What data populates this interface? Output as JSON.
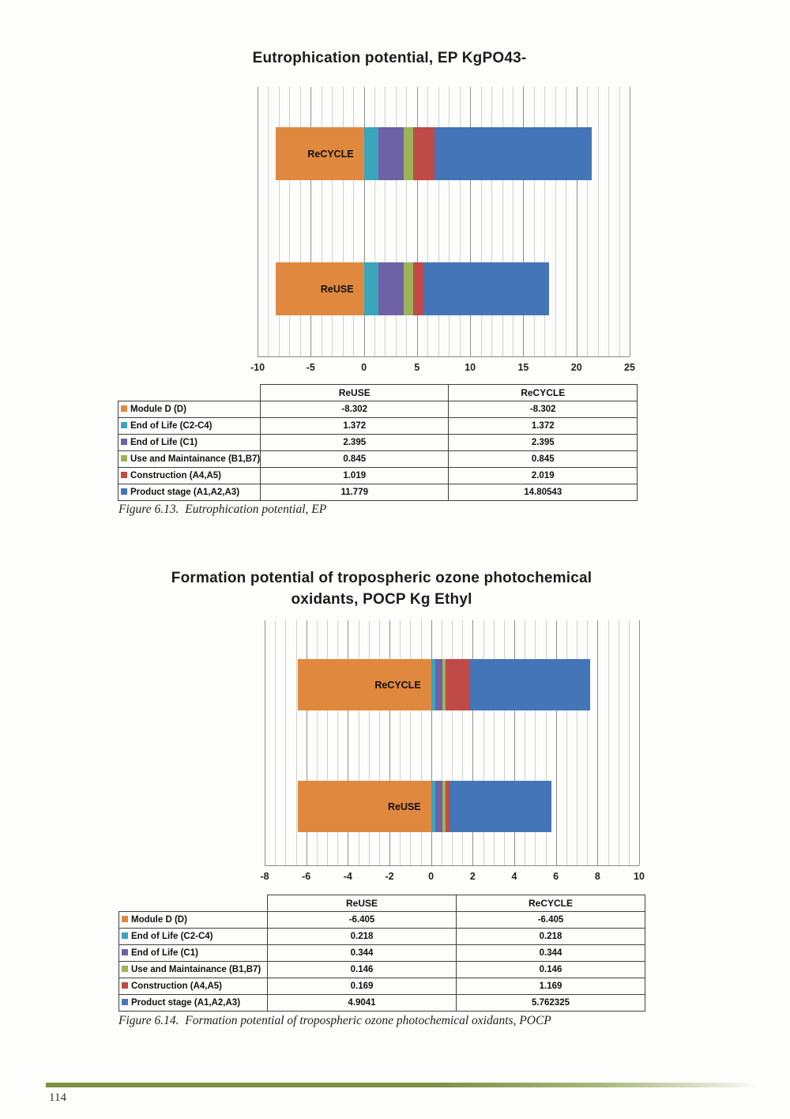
{
  "page_number": "114",
  "figures": [
    {
      "title_lines": [
        "Eutrophication potential, EP KgPO43-"
      ],
      "caption": "Figure 6.13.  Eutrophication potential, EP",
      "table": {
        "col_headers": [
          "ReUSE",
          "ReCYCLE"
        ],
        "rows": [
          {
            "label": "Module D (D)",
            "swatch": "#E0883E",
            "values": [
              "-8.302",
              "-8.302"
            ]
          },
          {
            "label": "End of Life (C2-C4)",
            "swatch": "#3AA5BC",
            "values": [
              "1.372",
              "1.372"
            ]
          },
          {
            "label": "End of Life (C1)",
            "swatch": "#6F61A5",
            "values": [
              "2.395",
              "2.395"
            ]
          },
          {
            "label": "Use and Maintainance (B1,B7)",
            "swatch": "#9CB356",
            "values": [
              "0.845",
              "0.845"
            ]
          },
          {
            "label": "Construction (A4,A5)",
            "swatch": "#BF4A47",
            "values": [
              "1.019",
              "2.019"
            ]
          },
          {
            "label": "Product stage (A1,A2,A3)",
            "swatch": "#4475B8",
            "values": [
              "11.779",
              "14.80543"
            ]
          }
        ]
      }
    },
    {
      "title_lines": [
        "Formation potential of tropospheric ozone photochemical",
        "oxidants, POCP Kg Ethyl"
      ],
      "caption": "Figure 6.14.  Formation potential of tropospheric ozone photochemical oxidants, POCP",
      "table": {
        "col_headers": [
          "ReUSE",
          "ReCYCLE"
        ],
        "rows": [
          {
            "label": "Module D (D)",
            "swatch": "#E0883E",
            "values": [
              "-6.405",
              "-6.405"
            ]
          },
          {
            "label": "End of Life (C2-C4)",
            "swatch": "#3AA5BC",
            "values": [
              "0.218",
              "0.218"
            ]
          },
          {
            "label": "End of Life (C1)",
            "swatch": "#6F61A5",
            "values": [
              "0.344",
              "0.344"
            ]
          },
          {
            "label": "Use and Maintainance (B1,B7)",
            "swatch": "#9CB356",
            "values": [
              "0.146",
              "0.146"
            ]
          },
          {
            "label": "Construction (A4,A5)",
            "swatch": "#BF4A47",
            "values": [
              "0.169",
              "1.169"
            ]
          },
          {
            "label": "Product stage (A1,A2,A3)",
            "swatch": "#4475B8",
            "values": [
              "4.9041",
              "5.762325"
            ]
          }
        ]
      }
    }
  ],
  "chart_data": [
    {
      "type": "bar",
      "orientation": "horizontal",
      "stacked": true,
      "title": "Eutrophication potential, EP KgPO43-",
      "categories": [
        "ReCYCLE",
        "ReUSE"
      ],
      "series": [
        {
          "name": "Module D (D)",
          "color": "#E0883E",
          "values": [
            -8.302,
            -8.302
          ]
        },
        {
          "name": "End of Life (C2-C4)",
          "color": "#3AA5BC",
          "values": [
            1.372,
            1.372
          ]
        },
        {
          "name": "End of Life (C1)",
          "color": "#6F61A5",
          "values": [
            2.395,
            2.395
          ]
        },
        {
          "name": "Use and Maintainance (B1,B7)",
          "color": "#9CB356",
          "values": [
            0.845,
            0.845
          ]
        },
        {
          "name": "Construction (A4,A5)",
          "color": "#BF4A47",
          "values": [
            2.019,
            1.019
          ]
        },
        {
          "name": "Product stage (A1,A2,A3)",
          "color": "#4475B8",
          "values": [
            14.80543,
            11.779
          ]
        }
      ],
      "xlim": [
        -10,
        25
      ],
      "x_minor": 1,
      "x_major": 5,
      "x_ticks": [
        -10,
        -5,
        0,
        5,
        10,
        15,
        20,
        25
      ],
      "grid": true,
      "legend_position": "data-table-below"
    },
    {
      "type": "bar",
      "orientation": "horizontal",
      "stacked": true,
      "title": "Formation potential of tropospheric ozone photochemical oxidants, POCP Kg Ethyl",
      "categories": [
        "ReCYCLE",
        "ReUSE"
      ],
      "series": [
        {
          "name": "Module D (D)",
          "color": "#E0883E",
          "values": [
            -6.405,
            -6.405
          ]
        },
        {
          "name": "End of Life (C2-C4)",
          "color": "#3AA5BC",
          "values": [
            0.218,
            0.218
          ]
        },
        {
          "name": "End of Life (C1)",
          "color": "#6F61A5",
          "values": [
            0.344,
            0.344
          ]
        },
        {
          "name": "Use and Maintainance (B1,B7)",
          "color": "#9CB356",
          "values": [
            0.146,
            0.146
          ]
        },
        {
          "name": "Construction (A4,A5)",
          "color": "#BF4A47",
          "values": [
            1.169,
            0.169
          ]
        },
        {
          "name": "Product stage (A1,A2,A3)",
          "color": "#4475B8",
          "values": [
            5.762325,
            4.9041
          ]
        }
      ],
      "xlim": [
        -8,
        10
      ],
      "x_minor": 0.5,
      "x_major": 2,
      "x_ticks": [
        -8,
        -6,
        -4,
        -2,
        0,
        2,
        4,
        6,
        8,
        10
      ],
      "grid": true,
      "legend_position": "data-table-below"
    }
  ]
}
